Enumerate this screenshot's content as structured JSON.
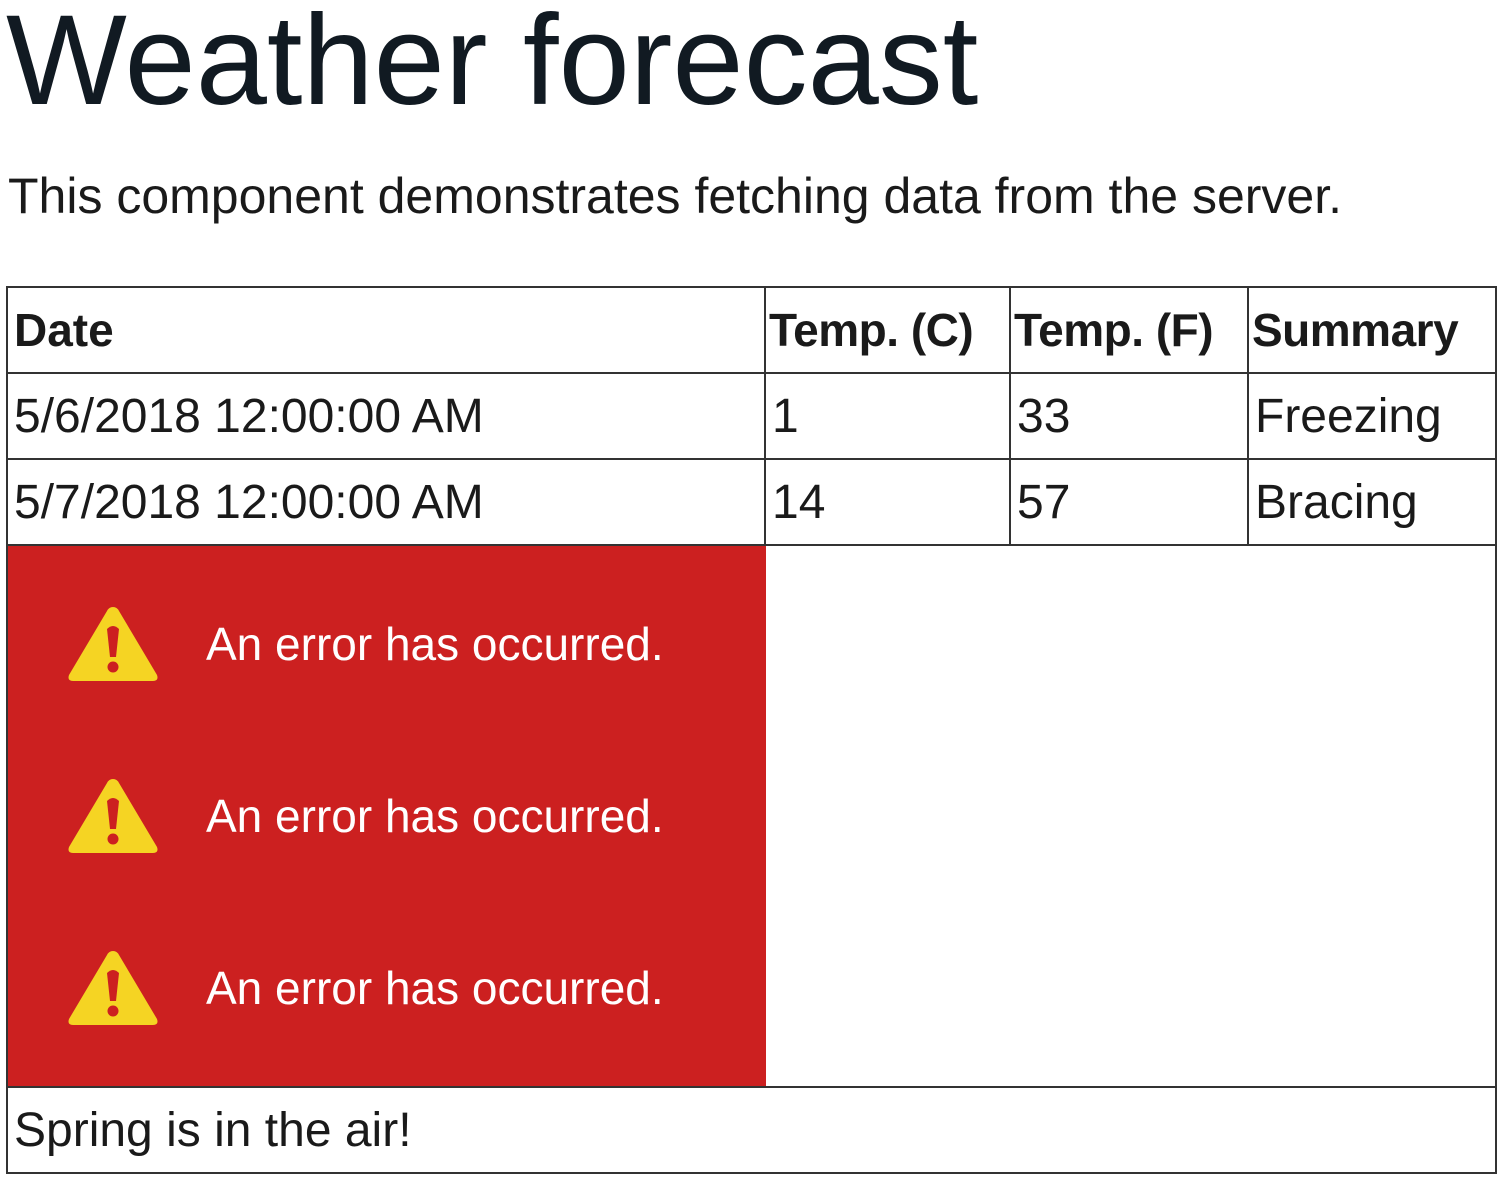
{
  "page": {
    "title": "Weather forecast",
    "intro": "This component demonstrates fetching data from the server."
  },
  "table": {
    "headers": [
      "Date",
      "Temp. (C)",
      "Temp. (F)",
      "Summary"
    ],
    "rows": [
      [
        "5/6/2018 12:00:00 AM",
        "1",
        "33",
        "Freezing"
      ],
      [
        "5/7/2018 12:00:00 AM",
        "14",
        "57",
        "Bracing"
      ]
    ]
  },
  "errors": {
    "icon": "warning-icon",
    "background_color": "#cc2020",
    "icon_color": "#f5d423",
    "items": [
      "An error has occurred.",
      "An error has occurred.",
      "An error has occurred."
    ]
  },
  "footer": {
    "message": "Spring is in the air!"
  }
}
